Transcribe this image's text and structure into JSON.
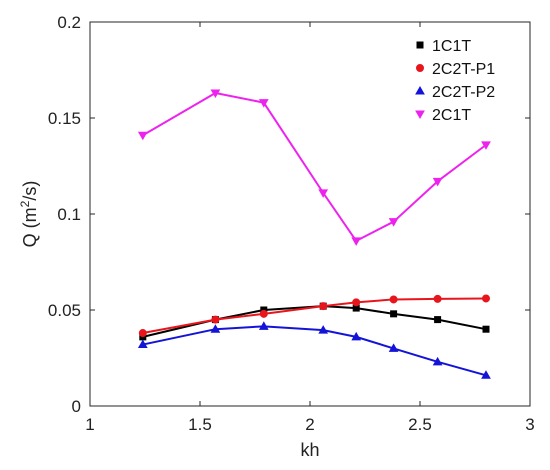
{
  "chart_data": {
    "type": "line",
    "xlabel": "kh",
    "ylabel_main": "Q (m",
    "ylabel_sup": "2",
    "ylabel_tail": "/s)",
    "xlim": [
      1,
      3
    ],
    "ylim": [
      0,
      0.2
    ],
    "xticks": [
      1,
      1.5,
      2,
      2.5,
      3
    ],
    "xtick_labels": [
      "1",
      "1.5",
      "2",
      "2.5",
      "3"
    ],
    "yticks": [
      0,
      0.05,
      0.1,
      0.15,
      0.2
    ],
    "ytick_labels": [
      "0",
      "0.05",
      "0.1",
      "0.15",
      "0.2"
    ],
    "grid": false,
    "legend_position": "top-right",
    "series": [
      {
        "name": "1C1T",
        "color": "#000000",
        "marker": "square",
        "x": [
          1.24,
          1.57,
          1.79,
          2.06,
          2.21,
          2.38,
          2.58,
          2.8
        ],
        "y": [
          0.036,
          0.045,
          0.05,
          0.052,
          0.051,
          0.048,
          0.045,
          0.04
        ]
      },
      {
        "name": "2C2T-P1",
        "color": "#e8161c",
        "marker": "circle",
        "x": [
          1.24,
          1.57,
          1.79,
          2.06,
          2.21,
          2.38,
          2.58,
          2.8
        ],
        "y": [
          0.038,
          0.045,
          0.048,
          0.052,
          0.054,
          0.0555,
          0.0558,
          0.056
        ]
      },
      {
        "name": "2C2T-P2",
        "color": "#1414d8",
        "marker": "triangle-up",
        "x": [
          1.24,
          1.57,
          1.79,
          2.06,
          2.21,
          2.38,
          2.58,
          2.8
        ],
        "y": [
          0.032,
          0.04,
          0.0415,
          0.0395,
          0.036,
          0.03,
          0.023,
          0.016
        ]
      },
      {
        "name": "2C1T",
        "color": "#ee22ee",
        "marker": "triangle-down",
        "x": [
          1.24,
          1.57,
          1.79,
          2.06,
          2.21,
          2.38,
          2.58,
          2.8
        ],
        "y": [
          0.141,
          0.163,
          0.158,
          0.111,
          0.086,
          0.096,
          0.117,
          0.136
        ]
      }
    ]
  }
}
